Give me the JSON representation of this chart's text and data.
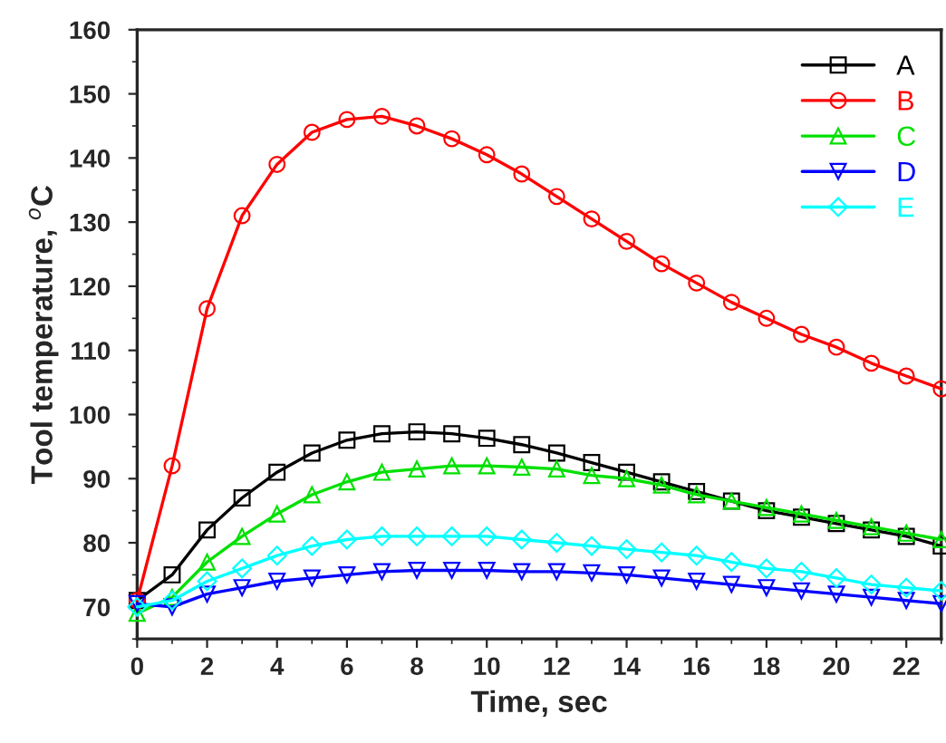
{
  "chart_data": {
    "type": "line",
    "xlabel": "Time, sec",
    "ylabel": "Tool temperature, $^{o}$C",
    "x": [
      0,
      1,
      2,
      3,
      4,
      5,
      6,
      7,
      8,
      9,
      10,
      11,
      12,
      13,
      14,
      15,
      16,
      17,
      18,
      19,
      20,
      21,
      22,
      23
    ],
    "xlim": [
      0,
      23
    ],
    "xticks": [
      0,
      2,
      4,
      6,
      8,
      10,
      12,
      14,
      16,
      18,
      20,
      22
    ],
    "ylim": [
      65,
      160
    ],
    "yticks": [
      70,
      80,
      90,
      100,
      110,
      120,
      130,
      140,
      150,
      160
    ],
    "grid": false,
    "legend": "top right",
    "line_style": "solid",
    "series": [
      {
        "name": "A",
        "color": "#000000",
        "marker": "square",
        "values": [
          71,
          75,
          82,
          87,
          91,
          94,
          96,
          97,
          97.3,
          97,
          96.3,
          95.3,
          94,
          92.5,
          91,
          89.5,
          88,
          86.5,
          85,
          84,
          83,
          82,
          81,
          79.5
        ]
      },
      {
        "name": "B",
        "color": "#ff0000",
        "marker": "circle",
        "values": [
          71,
          92,
          116.5,
          131,
          139,
          144,
          146,
          146.5,
          145,
          143,
          140.5,
          137.5,
          134,
          130.5,
          127,
          123.5,
          120.5,
          117.5,
          115,
          112.5,
          110.5,
          108,
          106,
          104
        ]
      },
      {
        "name": "C",
        "color": "#00e000",
        "marker": "triangle",
        "values": [
          69,
          71.5,
          77,
          81,
          84.5,
          87.5,
          89.5,
          91,
          91.5,
          92,
          92,
          91.8,
          91.5,
          90.5,
          90,
          89,
          87.5,
          86.5,
          85.5,
          84.5,
          83.5,
          82.5,
          81.5,
          80.5
        ]
      },
      {
        "name": "D",
        "color": "#0000ff",
        "marker": "triangle_down",
        "values": [
          70.5,
          70,
          72,
          73,
          74,
          74.5,
          75,
          75.5,
          75.7,
          75.7,
          75.7,
          75.5,
          75.5,
          75.3,
          75,
          74.5,
          74,
          73.5,
          73,
          72.5,
          72,
          71.5,
          71,
          70.5
        ]
      },
      {
        "name": "E",
        "color": "#00ffff",
        "marker": "diamond",
        "values": [
          70,
          71,
          74,
          76,
          78,
          79.5,
          80.5,
          81,
          81,
          81,
          81,
          80.5,
          80,
          79.5,
          79,
          78.5,
          78,
          77,
          76,
          75.5,
          74.5,
          73.5,
          73,
          72.5
        ]
      }
    ]
  }
}
